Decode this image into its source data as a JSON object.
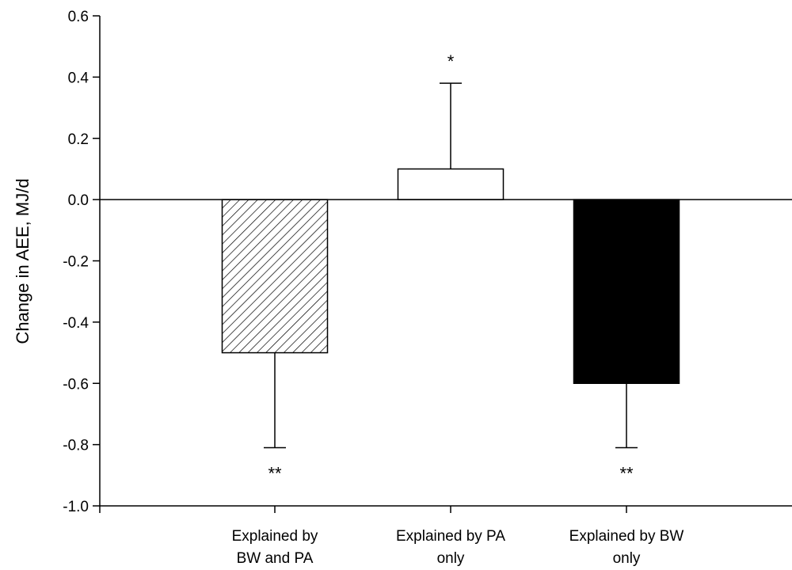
{
  "chart_data": {
    "type": "bar",
    "title": "",
    "xlabel": "",
    "ylabel": "Change in AEE, MJ/d",
    "ylim": [
      -1.0,
      0.6
    ],
    "yticks": [
      "0.6",
      "0.4",
      "0.2",
      "0.0",
      "-0.2",
      "-0.4",
      "-0.6",
      "-0.8",
      "-1.0"
    ],
    "ytick_values": [
      0.6,
      0.4,
      0.2,
      0.0,
      -0.2,
      -0.4,
      -0.6,
      -0.8,
      -1.0
    ],
    "grid": false,
    "categories": [
      [
        "Explained by",
        "BW and PA"
      ],
      [
        "Explained by PA",
        "only"
      ],
      [
        "Explained by BW",
        "only"
      ]
    ],
    "values": [
      -0.5,
      0.1,
      -0.6
    ],
    "error_bars": [
      0.31,
      0.28,
      0.21
    ],
    "significance": [
      "**",
      "*",
      "**"
    ],
    "bar_fills": [
      "hatched",
      "#ffffff",
      "#000000"
    ]
  }
}
